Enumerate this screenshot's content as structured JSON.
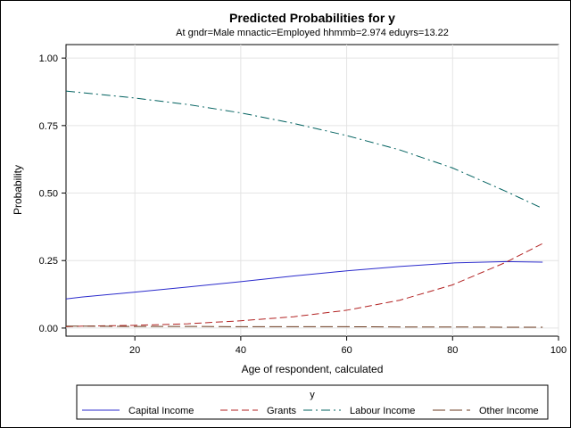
{
  "chart_data": {
    "type": "line",
    "title": "Predicted Probabilities for y",
    "subtitle": "At gndr=Male mnactic=Employed hhmmb=2.974 eduyrs=13.22",
    "xlabel": "Age of respondent, calculated",
    "ylabel": "Probability",
    "xlim": [
      7,
      100
    ],
    "ylim": [
      -0.03,
      1.05
    ],
    "xticks": [
      20,
      40,
      60,
      80,
      100
    ],
    "yticks": [
      0.0,
      0.25,
      0.5,
      0.75,
      1.0
    ],
    "xtick_labels": [
      "20",
      "40",
      "60",
      "80",
      "100"
    ],
    "ytick_labels": [
      "0.00",
      "0.25",
      "0.50",
      "0.75",
      "1.00"
    ],
    "grid": true,
    "legend": {
      "title": "y",
      "placement": "bottom"
    },
    "x": [
      7,
      10,
      20,
      30,
      40,
      50,
      60,
      70,
      80,
      90,
      97
    ],
    "series": [
      {
        "name": "Capital Income",
        "color": "#2b2bcc",
        "dash": "solid",
        "values": [
          0.108,
          0.115,
          0.133,
          0.152,
          0.172,
          0.193,
          0.212,
          0.228,
          0.241,
          0.246,
          0.244
        ]
      },
      {
        "name": "Grants",
        "color": "#b22222",
        "dash": "dashed",
        "values": [
          0.005,
          0.007,
          0.01,
          0.016,
          0.027,
          0.042,
          0.066,
          0.103,
          0.16,
          0.243,
          0.313
        ]
      },
      {
        "name": "Labour Income",
        "color": "#00615f",
        "dash": "dashdot",
        "values": [
          0.878,
          0.872,
          0.852,
          0.828,
          0.797,
          0.758,
          0.713,
          0.66,
          0.593,
          0.507,
          0.443
        ]
      },
      {
        "name": "Other Income",
        "color": "#6b3a1f",
        "dash": "longdash",
        "values": [
          0.007,
          0.007,
          0.006,
          0.006,
          0.005,
          0.005,
          0.005,
          0.004,
          0.004,
          0.003,
          0.003
        ]
      }
    ]
  }
}
